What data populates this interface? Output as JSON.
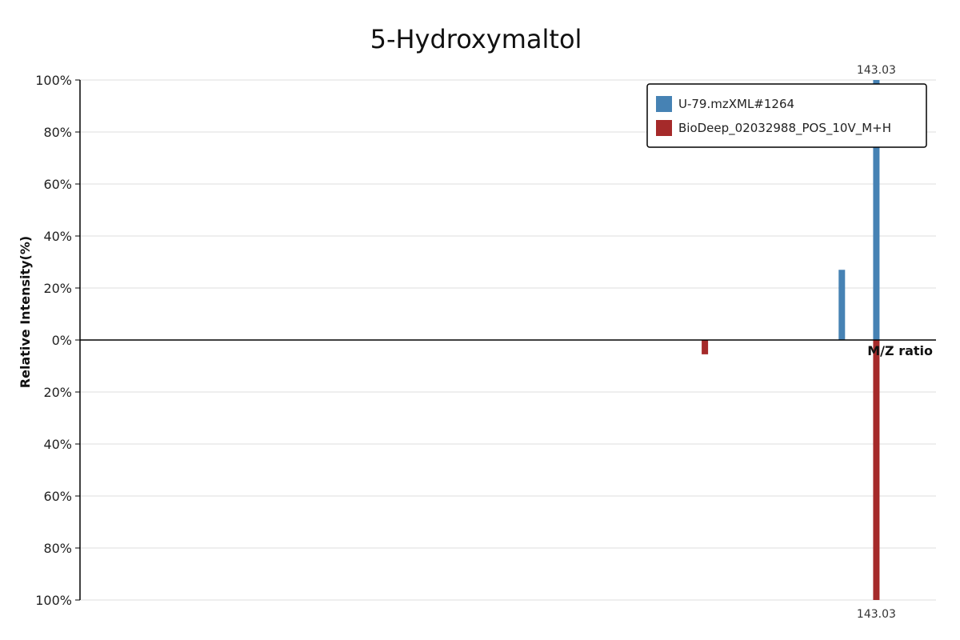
{
  "chart_data": {
    "type": "bar",
    "title": "5-Hydroxymaltol",
    "xlabel": "M/Z ratio",
    "ylabel": "Relative Intensity(%)",
    "upper_ticks": [
      "100%",
      "80%",
      "60%",
      "40%",
      "20%",
      "0%"
    ],
    "lower_ticks": [
      "20%",
      "40%",
      "60%",
      "80%",
      "100%"
    ],
    "ylim": [
      -100,
      100
    ],
    "xlim": [
      50,
      150
    ],
    "grid": true,
    "legend_position": "top-right",
    "series": [
      {
        "name": "U-79.mzXML#1264",
        "color": "#4682b4",
        "direction": "up",
        "points": [
          {
            "mz": 139.0,
            "intensity": 27
          },
          {
            "mz": 143.03,
            "intensity": 100
          }
        ]
      },
      {
        "name": "BioDeep_02032988_POS_10V_M+H",
        "color": "#a52a2a",
        "direction": "down",
        "points": [
          {
            "mz": 123.0,
            "intensity": 5.5
          },
          {
            "mz": 143.03,
            "intensity": 100
          }
        ]
      }
    ],
    "annotations": {
      "top_peak_label": "143.03",
      "bottom_peak_label": "143.03"
    }
  }
}
